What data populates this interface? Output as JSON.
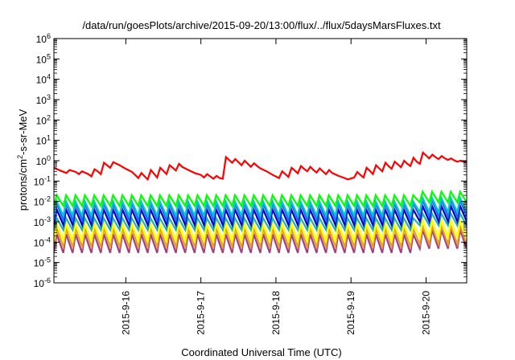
{
  "chart_data": {
    "type": "line",
    "title": "/data/run/goesPlots/archive/2015-09-20/13:00/flux/../flux/5daysMarsFluxes.txt",
    "xlabel": "Coordinated Universal Time (UTC)",
    "ylabel": {
      "prefix": "protons/cm",
      "sup": "2",
      "suffix": "-s-sr-MeV"
    },
    "yscale": "log",
    "ylim": [
      1e-06,
      1000000.0
    ],
    "xlim": [
      "2015-09-15 01:00",
      "2015-09-20 13:00"
    ],
    "x_ticks": [
      {
        "label": "2015-9-16",
        "x": "2015-09-16 00:00"
      },
      {
        "label": "2015-9-17",
        "x": "2015-09-17 00:00"
      },
      {
        "label": "2015-9-18",
        "x": "2015-09-18 00:00"
      },
      {
        "label": "2015-9-19",
        "x": "2015-09-19 00:00"
      },
      {
        "label": "2015-9-20",
        "x": "2015-09-20 00:00"
      }
    ],
    "y_ticks": [
      {
        "base": "10",
        "exp": "-6"
      },
      {
        "base": "10",
        "exp": "-5"
      },
      {
        "base": "10",
        "exp": "-4"
      },
      {
        "base": "10",
        "exp": "-3"
      },
      {
        "base": "10",
        "exp": "-2"
      },
      {
        "base": "10",
        "exp": "-1"
      },
      {
        "base": "10",
        "exp": "0"
      },
      {
        "base": "10",
        "exp": "1"
      },
      {
        "base": "10",
        "exp": "2"
      },
      {
        "base": "10",
        "exp": "3"
      },
      {
        "base": "10",
        "exp": "4"
      },
      {
        "base": "10",
        "exp": "5"
      },
      {
        "base": "10",
        "exp": "6"
      }
    ],
    "series": [
      {
        "color": "#ff0000",
        "points": [
          [
            "2015-09-15 01:00",
            0.45
          ],
          [
            "2015-09-15 03:00",
            0.33
          ],
          [
            "2015-09-15 05:00",
            0.25
          ],
          [
            "2015-09-15 06:00",
            0.35
          ],
          [
            "2015-09-15 08:00",
            0.28
          ],
          [
            "2015-09-15 09:00",
            0.22
          ],
          [
            "2015-09-15 10:00",
            0.3
          ],
          [
            "2015-09-15 12:00",
            0.22
          ],
          [
            "2015-09-15 13:00",
            0.17
          ],
          [
            "2015-09-15 14:00",
            0.38
          ],
          [
            "2015-09-15 15:00",
            0.3
          ],
          [
            "2015-09-15 16:00",
            0.22
          ],
          [
            "2015-09-15 17:00",
            0.8
          ],
          [
            "2015-09-15 18:00",
            0.6
          ],
          [
            "2015-09-15 19:00",
            0.45
          ],
          [
            "2015-09-15 20:00",
            0.85
          ],
          [
            "2015-09-15 22:00",
            0.6
          ],
          [
            "2015-09-16 00:00",
            0.4
          ],
          [
            "2015-09-16 02:00",
            0.28
          ],
          [
            "2015-09-16 03:00",
            0.2
          ],
          [
            "2015-09-16 04:00",
            0.14
          ],
          [
            "2015-09-16 05:00",
            0.25
          ],
          [
            "2015-09-16 06:00",
            0.17
          ],
          [
            "2015-09-16 07:00",
            0.12
          ],
          [
            "2015-09-16 08:00",
            0.35
          ],
          [
            "2015-09-16 09:00",
            0.23
          ],
          [
            "2015-09-16 10:00",
            0.15
          ],
          [
            "2015-09-16 11:00",
            0.45
          ],
          [
            "2015-09-16 12:00",
            0.32
          ],
          [
            "2015-09-16 13:00",
            0.22
          ],
          [
            "2015-09-16 14:00",
            0.6
          ],
          [
            "2015-09-16 15:00",
            0.45
          ],
          [
            "2015-09-16 16:00",
            0.33
          ],
          [
            "2015-09-16 17:00",
            0.7
          ],
          [
            "2015-09-16 18:00",
            0.5
          ],
          [
            "2015-09-16 20:00",
            0.35
          ],
          [
            "2015-09-16 22:00",
            0.25
          ],
          [
            "2015-09-17 00:00",
            0.2
          ],
          [
            "2015-09-17 01:00",
            0.15
          ],
          [
            "2015-09-17 02:00",
            0.22
          ],
          [
            "2015-09-17 03:00",
            0.17
          ],
          [
            "2015-09-17 04:00",
            0.13
          ],
          [
            "2015-09-17 05:00",
            0.18
          ],
          [
            "2015-09-17 06:00",
            0.14
          ],
          [
            "2015-09-17 07:00",
            0.13
          ],
          [
            "2015-09-17 08:00",
            1.5
          ],
          [
            "2015-09-17 09:00",
            1.1
          ],
          [
            "2015-09-17 10:00",
            0.8
          ],
          [
            "2015-09-17 11:00",
            1.2
          ],
          [
            "2015-09-17 12:00",
            0.85
          ],
          [
            "2015-09-17 13:00",
            0.6
          ],
          [
            "2015-09-17 14:00",
            1.0
          ],
          [
            "2015-09-17 15:00",
            0.7
          ],
          [
            "2015-09-17 16:00",
            0.5
          ],
          [
            "2015-09-17 17:00",
            0.75
          ],
          [
            "2015-09-17 18:00",
            0.55
          ],
          [
            "2015-09-17 19:00",
            0.42
          ],
          [
            "2015-09-17 21:00",
            0.3
          ],
          [
            "2015-09-17 23:00",
            0.2
          ],
          [
            "2015-09-18 01:00",
            0.14
          ],
          [
            "2015-09-18 02:00",
            0.3
          ],
          [
            "2015-09-18 03:00",
            0.22
          ],
          [
            "2015-09-18 04:00",
            0.16
          ],
          [
            "2015-09-18 05:00",
            0.45
          ],
          [
            "2015-09-18 06:00",
            0.33
          ],
          [
            "2015-09-18 07:00",
            0.24
          ],
          [
            "2015-09-18 08:00",
            0.55
          ],
          [
            "2015-09-18 09:00",
            0.4
          ],
          [
            "2015-09-18 10:00",
            0.3
          ],
          [
            "2015-09-18 11:00",
            0.5
          ],
          [
            "2015-09-18 12:00",
            0.35
          ],
          [
            "2015-09-18 13:00",
            0.26
          ],
          [
            "2015-09-18 14:00",
            0.42
          ],
          [
            "2015-09-18 15:00",
            0.3
          ],
          [
            "2015-09-18 16:00",
            0.22
          ],
          [
            "2015-09-18 17:00",
            0.35
          ],
          [
            "2015-09-18 18:00",
            0.25
          ],
          [
            "2015-09-18 20:00",
            0.18
          ],
          [
            "2015-09-18 22:00",
            0.14
          ],
          [
            "2015-09-18 23:00",
            0.12
          ],
          [
            "2015-09-19 01:00",
            0.15
          ],
          [
            "2015-09-19 02:00",
            0.28
          ],
          [
            "2015-09-19 03:00",
            0.2
          ],
          [
            "2015-09-19 04:00",
            0.15
          ],
          [
            "2015-09-19 05:00",
            0.45
          ],
          [
            "2015-09-19 06:00",
            0.32
          ],
          [
            "2015-09-19 07:00",
            0.22
          ],
          [
            "2015-09-19 08:00",
            0.6
          ],
          [
            "2015-09-19 09:00",
            0.42
          ],
          [
            "2015-09-19 10:00",
            0.3
          ],
          [
            "2015-09-19 11:00",
            0.8
          ],
          [
            "2015-09-19 12:00",
            0.55
          ],
          [
            "2015-09-19 13:00",
            0.4
          ],
          [
            "2015-09-19 14:00",
            0.9
          ],
          [
            "2015-09-19 15:00",
            0.65
          ],
          [
            "2015-09-19 16:00",
            0.48
          ],
          [
            "2015-09-19 17:00",
            1.0
          ],
          [
            "2015-09-19 18:00",
            0.7
          ],
          [
            "2015-09-19 19:00",
            0.55
          ],
          [
            "2015-09-19 20:00",
            1.4
          ],
          [
            "2015-09-19 21:00",
            0.9
          ],
          [
            "2015-09-19 22:00",
            0.7
          ],
          [
            "2015-09-19 23:00",
            2.5
          ],
          [
            "2015-09-20 00:00",
            1.8
          ],
          [
            "2015-09-20 01:00",
            1.3
          ],
          [
            "2015-09-20 02:00",
            2.0
          ],
          [
            "2015-09-20 03:00",
            1.5
          ],
          [
            "2015-09-20 04:00",
            1.2
          ],
          [
            "2015-09-20 05:00",
            1.7
          ],
          [
            "2015-09-20 06:00",
            1.3
          ],
          [
            "2015-09-20 07:00",
            1.1
          ],
          [
            "2015-09-20 08:00",
            1.3
          ],
          [
            "2015-09-20 09:00",
            1.05
          ],
          [
            "2015-09-20 10:00",
            0.9
          ],
          [
            "2015-09-20 11:00",
            1.0
          ],
          [
            "2015-09-20 12:00",
            0.9
          ],
          [
            "2015-09-20 13:00",
            0.95
          ]
        ]
      },
      {
        "color": "#00ff00",
        "pattern": "sawtooth",
        "period_hours": 3,
        "peak": 0.02,
        "trough": 0.006,
        "late_peak": 0.03
      },
      {
        "color": "#00c8c8",
        "pattern": "sawtooth",
        "period_hours": 3,
        "peak": 0.01,
        "trough": 0.002,
        "late_peak": 0.015
      },
      {
        "color": "#1e64ff",
        "pattern": "sawtooth",
        "period_hours": 3,
        "peak": 0.008,
        "trough": 0.0012,
        "late_peak": 0.012
      },
      {
        "color": "#0000c8",
        "pattern": "sawtooth",
        "period_hours": 3,
        "peak": 0.004,
        "trough": 0.0007,
        "late_peak": 0.006
      },
      {
        "color": "#20b2aa",
        "pattern": "sawtooth",
        "period_hours": 3,
        "peak": 0.0015,
        "trough": 0.0004,
        "late_peak": 0.0025
      },
      {
        "color": "#ffff00",
        "pattern": "sawtooth",
        "period_hours": 3,
        "peak": 0.0008,
        "trough": 0.00012,
        "late_peak": 0.0012
      },
      {
        "color": "#e8a020",
        "pattern": "sawtooth",
        "period_hours": 3,
        "peak": 0.00045,
        "trough": 6e-05,
        "late_peak": 0.0006
      },
      {
        "color": "#a03c8c",
        "pattern": "sawtooth",
        "period_hours": 3,
        "peak": 0.00025,
        "trough": 3e-05,
        "late_peak": 0.0004
      }
    ]
  }
}
